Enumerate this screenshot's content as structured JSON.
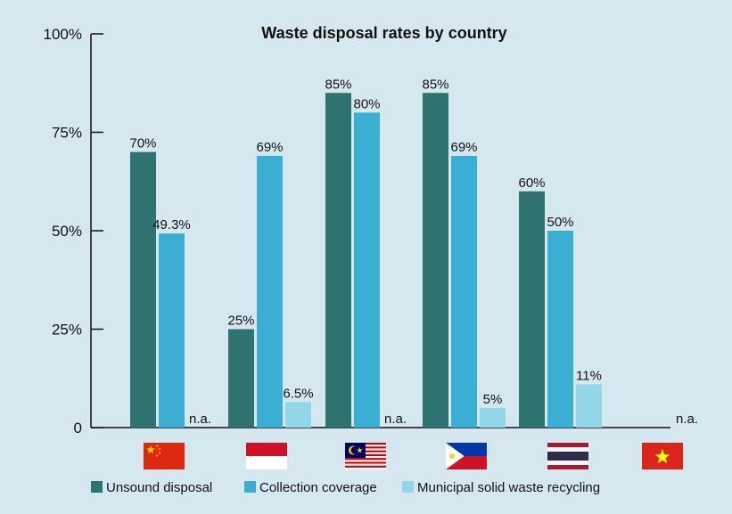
{
  "chart_data": {
    "type": "bar",
    "title": "Waste disposal rates by country",
    "xlabel": "",
    "ylabel": "",
    "ylim": [
      0,
      100
    ],
    "yticks": [
      {
        "value": 0,
        "label": "0"
      },
      {
        "value": 25,
        "label": "25%"
      },
      {
        "value": 50,
        "label": "50%"
      },
      {
        "value": 75,
        "label": "75%"
      },
      {
        "value": 100,
        "label": "100%"
      }
    ],
    "categories": [
      "China",
      "Indonesia",
      "Malaysia",
      "Philippines",
      "Thailand",
      "Vietnam"
    ],
    "legend_position": "bottom",
    "grid": false,
    "series": [
      {
        "name": "Unsound disposal",
        "color": "#2e7370",
        "values": [
          70,
          25,
          85,
          85,
          60,
          null
        ],
        "labels": [
          "70%",
          "25%",
          "85%",
          "85%",
          "60%",
          ""
        ]
      },
      {
        "name": "Collection coverage",
        "color": "#3aaed3",
        "values": [
          49.3,
          69,
          80,
          69,
          50,
          null
        ],
        "labels": [
          "49.3%",
          "69%",
          "80%",
          "69%",
          "50%",
          ""
        ]
      },
      {
        "name": "Municipal solid waste recycling",
        "color": "#93d6e8",
        "values": [
          null,
          6.5,
          null,
          5,
          11,
          null
        ],
        "labels": [
          "n.a.",
          "6.5%",
          "n.a.",
          "5%",
          "11%",
          "n.a."
        ]
      }
    ]
  },
  "colors": {
    "background": "#d6e8ef",
    "axis": "#111111"
  },
  "flags": [
    {
      "country": "China",
      "icon": "china-flag-icon"
    },
    {
      "country": "Indonesia",
      "icon": "indonesia-flag-icon"
    },
    {
      "country": "Malaysia",
      "icon": "malaysia-flag-icon"
    },
    {
      "country": "Philippines",
      "icon": "philippines-flag-icon"
    },
    {
      "country": "Thailand",
      "icon": "thailand-flag-icon"
    },
    {
      "country": "Vietnam",
      "icon": "vietnam-flag-icon"
    }
  ]
}
